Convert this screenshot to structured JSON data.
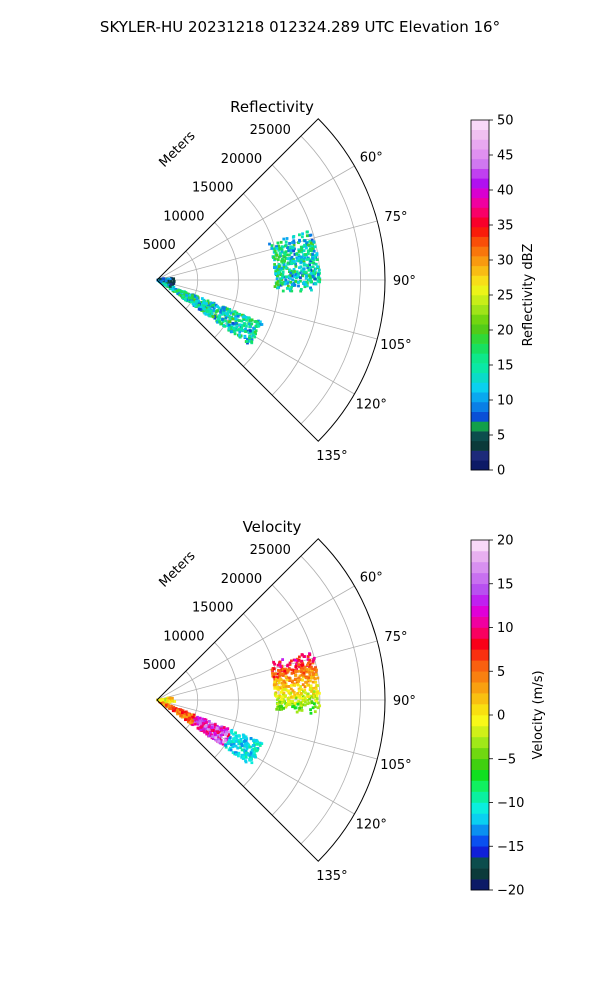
{
  "figure": {
    "title": "SKYLER-HU  20231218  012324.289 UTC Elevation 16°"
  },
  "chart_data": [
    {
      "type": "heatmap",
      "projection": "polar-sector",
      "title": "Reflectivity",
      "radial_axis_label": "Meters",
      "radial_ticks": [
        5000,
        10000,
        15000,
        20000,
        25000
      ],
      "radial_tick_labels": [
        "5000",
        "10000",
        "15000",
        "20000",
        "25000"
      ],
      "rlim": [
        0,
        28000
      ],
      "theta_range_deg": [
        45,
        135
      ],
      "theta_ticks_deg": [
        60,
        75,
        90,
        105,
        120,
        135
      ],
      "theta_tick_labels": [
        "60°",
        "75°",
        "90°",
        "105°",
        "120°",
        "135°"
      ],
      "grid": true,
      "colorbar": {
        "label": "Reflectivity dBZ",
        "min": 0,
        "max": 50,
        "ticks": [
          0,
          5,
          10,
          15,
          20,
          25,
          30,
          35,
          40,
          45,
          50
        ],
        "tick_labels": [
          "0",
          "5",
          "10",
          "15",
          "20",
          "25",
          "30",
          "35",
          "40",
          "45",
          "50"
        ],
        "colors": [
          "#0c1a66",
          "#1d2a7a",
          "#0b3a3a",
          "#0c4d4d",
          "#12a04a",
          "#0a4fd6",
          "#0a7fe6",
          "#0aa8ef",
          "#0ad0ef",
          "#0adbc8",
          "#0ae8a6",
          "#0ee88a",
          "#18e060",
          "#30d838",
          "#52cc18",
          "#72d610",
          "#a0e418",
          "#c8ee18",
          "#ecf418",
          "#f8de18",
          "#f8bc14",
          "#f89a10",
          "#f8760c",
          "#f84e08",
          "#f81c0a",
          "#f8002a",
          "#f80068",
          "#f000a0",
          "#d800d0",
          "#b010f0",
          "#c040f0",
          "#d078f0",
          "#e090f0",
          "#e8a8f0",
          "#f0c0f0",
          "#f8d8f8"
        ]
      },
      "echoes": [
        {
          "region": "cell-east",
          "r_range": [
            14500,
            20000
          ],
          "theta_range_deg": [
            72,
            95
          ],
          "values_dbz": [
            8,
            20
          ]
        },
        {
          "region": "near-southeast",
          "r_range": [
            300,
            14000
          ],
          "theta_range_deg": [
            112,
            125
          ],
          "values_dbz": [
            8,
            20
          ]
        },
        {
          "region": "near-origin",
          "r_range": [
            0,
            2200
          ],
          "theta_range_deg": [
            78,
            118
          ],
          "values_dbz": [
            2,
            12
          ]
        }
      ]
    },
    {
      "type": "heatmap",
      "projection": "polar-sector",
      "title": "Velocity",
      "radial_axis_label": "Meters",
      "radial_ticks": [
        5000,
        10000,
        15000,
        20000,
        25000
      ],
      "radial_tick_labels": [
        "5000",
        "10000",
        "15000",
        "20000",
        "25000"
      ],
      "rlim": [
        0,
        28000
      ],
      "theta_range_deg": [
        45,
        135
      ],
      "theta_ticks_deg": [
        60,
        75,
        90,
        105,
        120,
        135
      ],
      "theta_tick_labels": [
        "60°",
        "75°",
        "90°",
        "105°",
        "120°",
        "135°"
      ],
      "grid": true,
      "colorbar": {
        "label": "Velocity (m/s)",
        "min": -20,
        "max": 20,
        "ticks": [
          -20,
          -15,
          -10,
          -5,
          0,
          5,
          10,
          15,
          20
        ],
        "tick_labels": [
          "−20",
          "−15",
          "−10",
          "−5",
          "0",
          "5",
          "10",
          "15",
          "20"
        ],
        "colors": [
          "#0c1a66",
          "#0b3a3a",
          "#0c4d4d",
          "#1020d8",
          "#0a50f0",
          "#0a90f0",
          "#0ad0f0",
          "#0aeedd",
          "#0af0a0",
          "#10f060",
          "#10e020",
          "#40d010",
          "#70d810",
          "#a0e818",
          "#d0f018",
          "#f8f818",
          "#f8e010",
          "#f8c010",
          "#f8a010",
          "#f88010",
          "#f86010",
          "#f83010",
          "#f80018",
          "#f80060",
          "#f000a0",
          "#e000d8",
          "#c020f0",
          "#b850f0",
          "#c870f0",
          "#d890f0",
          "#e8b0f0",
          "#f8d8f8"
        ]
      },
      "echoes": [
        {
          "region": "cell-east",
          "r_range": [
            14500,
            20000
          ],
          "theta_range_deg": [
            72,
            95
          ],
          "values_ms": [
            -8,
            12
          ]
        },
        {
          "region": "near-southeast",
          "r_range": [
            300,
            14000
          ],
          "theta_range_deg": [
            112,
            125
          ],
          "values_ms": [
            -12,
            18
          ]
        },
        {
          "region": "near-origin",
          "r_range": [
            0,
            2200
          ],
          "theta_range_deg": [
            80,
            100
          ],
          "values_ms": [
            -5,
            5
          ]
        }
      ]
    }
  ]
}
